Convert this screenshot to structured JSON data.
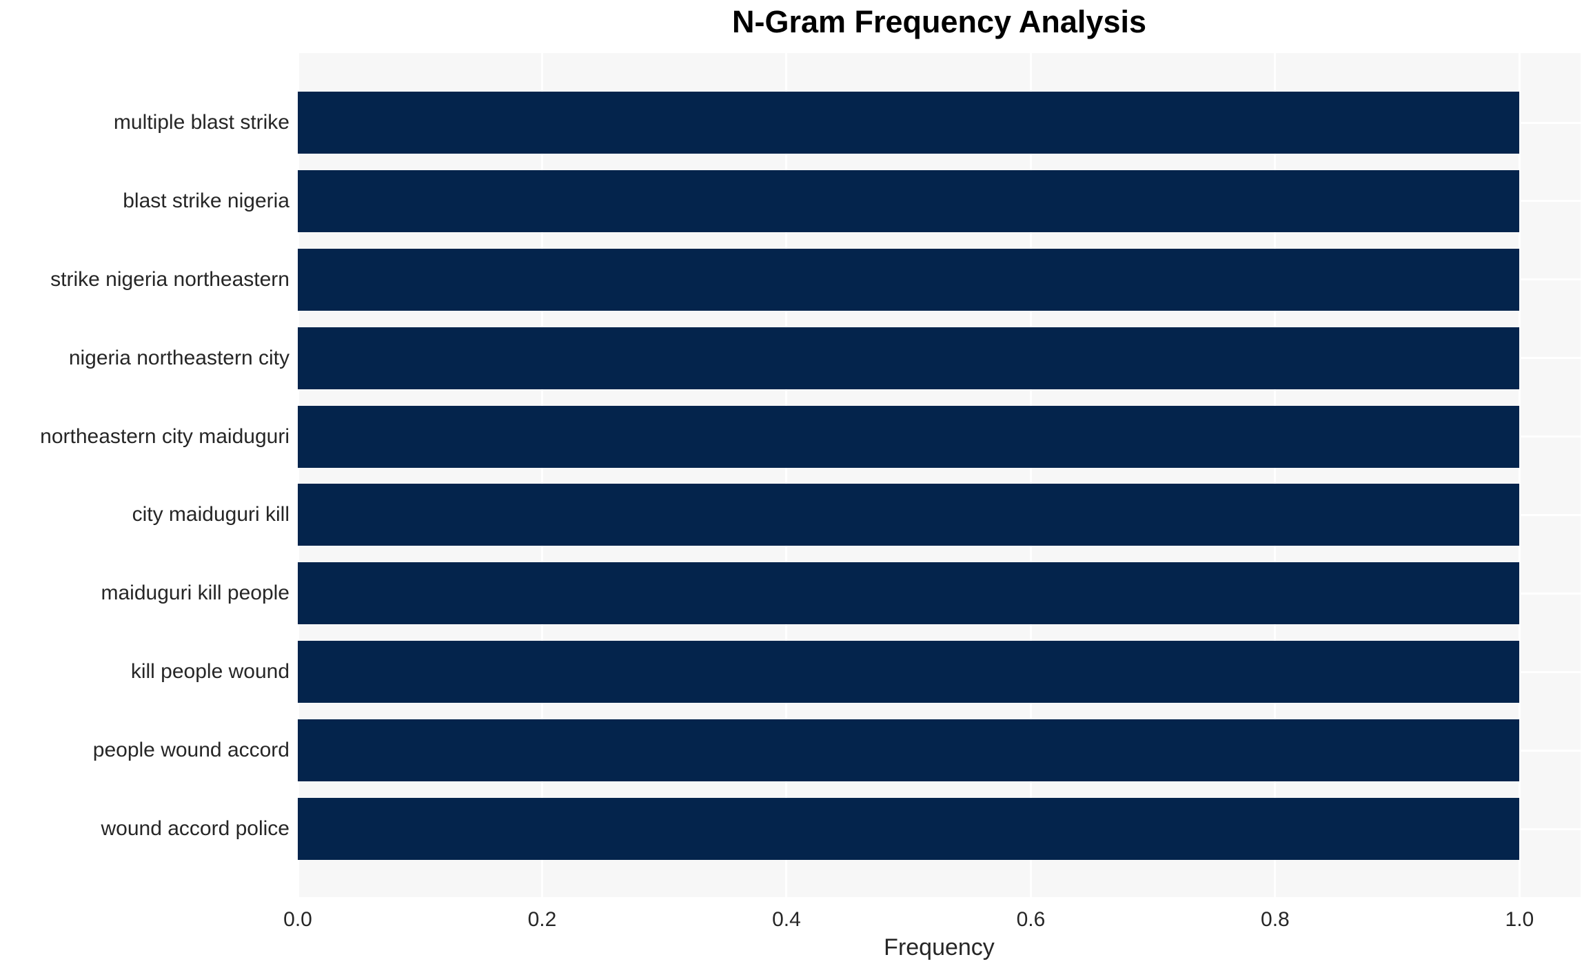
{
  "chart_data": {
    "type": "bar",
    "orientation": "horizontal",
    "title": "N-Gram Frequency Analysis",
    "xlabel": "Frequency",
    "ylabel": "",
    "categories": [
      "multiple blast strike",
      "blast strike nigeria",
      "strike nigeria northeastern",
      "nigeria northeastern city",
      "northeastern city maiduguri",
      "city maiduguri kill",
      "maiduguri kill people",
      "kill people wound",
      "people wound accord",
      "wound accord police"
    ],
    "values": [
      1.0,
      1.0,
      1.0,
      1.0,
      1.0,
      1.0,
      1.0,
      1.0,
      1.0,
      1.0
    ],
    "xlim": [
      0,
      1.05
    ],
    "xtick_values": [
      0.0,
      0.2,
      0.4,
      0.6,
      0.8,
      1.0
    ],
    "xtick_labels": [
      "0.0",
      "0.2",
      "0.4",
      "0.6",
      "0.8",
      "1.0"
    ],
    "grid": true,
    "legend": null,
    "colors": {
      "bar": "#04244C",
      "plot_background": "#f7f7f7",
      "gridline": "#ffffff",
      "figure_background": "#ffffff",
      "tick_text": "#262626",
      "title_text": "#000000"
    }
  }
}
